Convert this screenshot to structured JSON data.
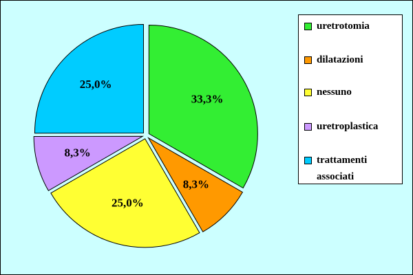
{
  "chart_data": {
    "type": "pie",
    "categories": [
      "uretrotomia",
      "dilatazioni",
      "nessuno",
      "uretroplastica",
      "trattamenti associati"
    ],
    "values": [
      33.3,
      8.3,
      25.0,
      8.3,
      25.0
    ],
    "value_labels": [
      "33,3%",
      "8,3%",
      "25,0%",
      "8,3%",
      "25,0%"
    ],
    "colors": [
      "#33ee33",
      "#ff9900",
      "#ffff33",
      "#cc99ff",
      "#00ccff"
    ],
    "legend": "right"
  }
}
